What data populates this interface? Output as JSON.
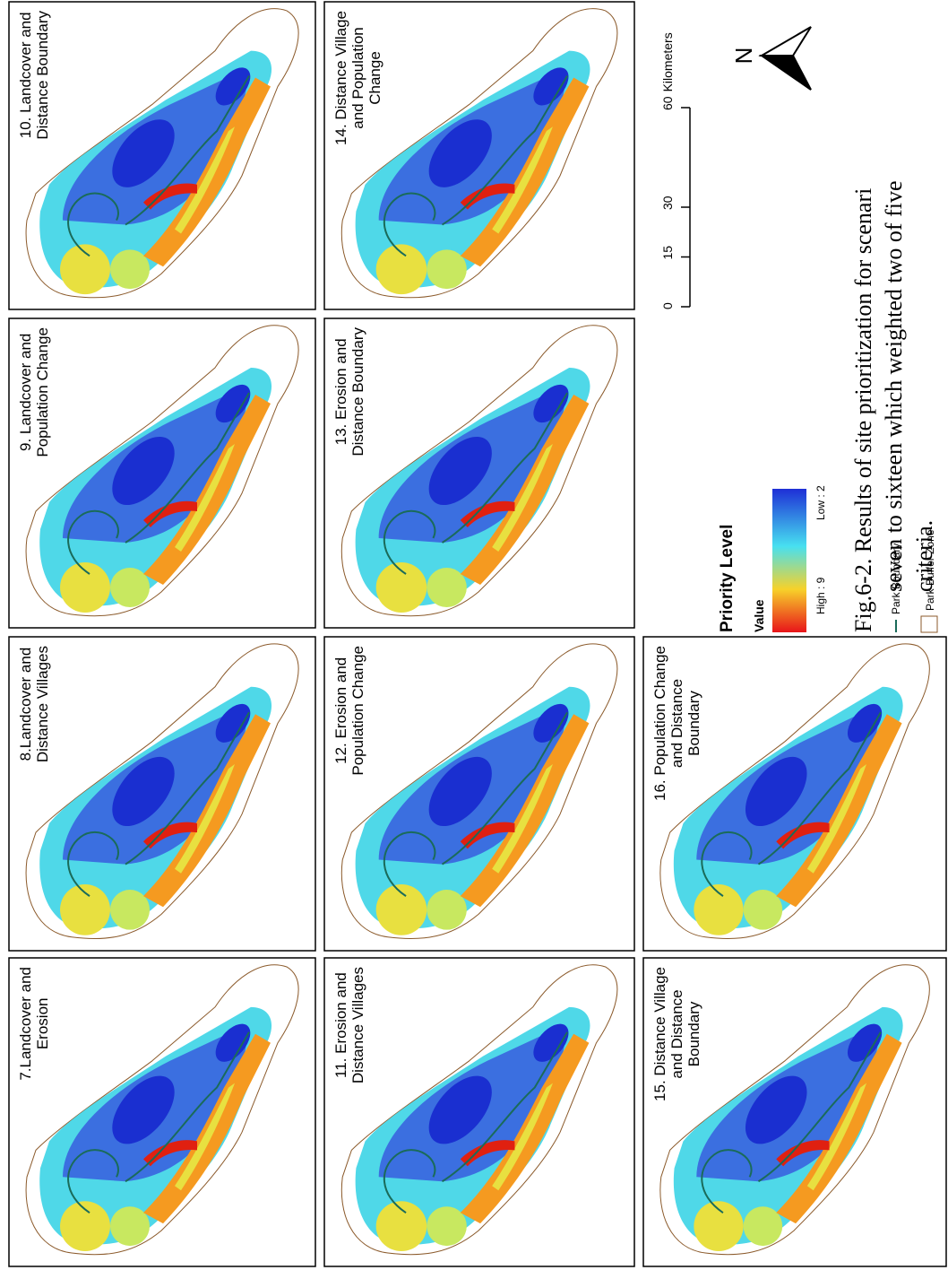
{
  "panels": [
    {
      "title": [
        "10. Landcover and",
        "Distance Boundary"
      ]
    },
    {
      "title": [
        "9. Landcover and",
        "Population Change"
      ]
    },
    {
      "title": [
        "8.Landcover and",
        "Distance  Villages"
      ]
    },
    {
      "title": [
        "7.Landcover and",
        "Erosion"
      ]
    },
    {
      "title": [
        "14.  Distance Village",
        "and Population",
        "Change"
      ]
    },
    {
      "title": [
        "13. Erosion and",
        "Distance Boundary"
      ]
    },
    {
      "title": [
        "12. Erosion and",
        "Population Change"
      ]
    },
    {
      "title": [
        "11. Erosion and",
        "Distance Villages"
      ]
    },
    {
      "title": [
        "16.  Population Change",
        "and Distance",
        "Boundary"
      ]
    },
    {
      "title": [
        "15. Distance Village",
        "and Distance",
        "Boundary"
      ]
    }
  ],
  "legend": {
    "title": "Priority Level",
    "subtitle": "Value",
    "high": "High : 9",
    "low": "Low : 2",
    "boundary": "Park Boundary",
    "buffer": "Park Buffer Zone"
  },
  "scale_bar": {
    "ticks": [
      0,
      15,
      30,
      60
    ],
    "unit": "Kilometers"
  },
  "north": "N",
  "caption": [
    "Fig.6-2. Results of site prioritization for scenari",
    "seven to sixteen which weighted two of five",
    "criteria."
  ]
}
